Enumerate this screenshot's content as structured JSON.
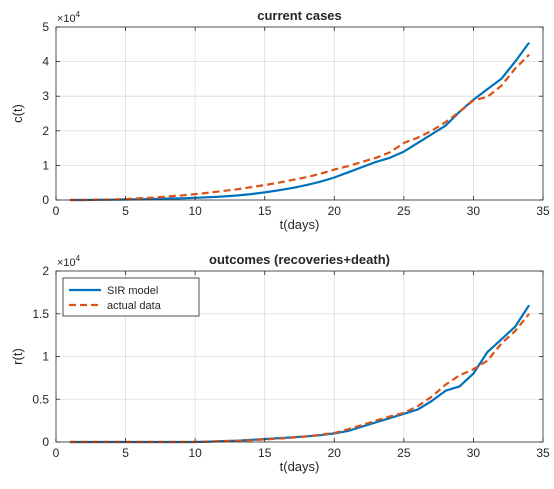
{
  "chart_data": [
    {
      "type": "line",
      "title": "current cases",
      "xlabel": "t(days)",
      "ylabel": "c(t)",
      "xlim": [
        0,
        35
      ],
      "ylim": [
        0,
        50000
      ],
      "xticks": [
        0,
        5,
        10,
        15,
        20,
        25,
        30,
        35
      ],
      "yticks": [
        0,
        10000,
        20000,
        30000,
        40000,
        50000
      ],
      "ytick_labels": [
        "0",
        "1",
        "2",
        "3",
        "4",
        "5"
      ],
      "y_multiplier": {
        "base": "×10",
        "exponent": "4"
      },
      "grid": true,
      "legend": null,
      "series": [
        {
          "color": "#0072BD",
          "style": "solid",
          "x": [
            1,
            2,
            3,
            4,
            5,
            6,
            7,
            8,
            9,
            10,
            11,
            12,
            13,
            14,
            15,
            16,
            17,
            18,
            19,
            20,
            21,
            22,
            23,
            24,
            25,
            26,
            27,
            28,
            29,
            30,
            31,
            32,
            33,
            34
          ],
          "y": [
            0,
            0,
            50,
            100,
            150,
            200,
            300,
            400,
            500,
            650,
            800,
            1000,
            1300,
            1700,
            2200,
            2800,
            3500,
            4300,
            5300,
            6500,
            8000,
            9500,
            11000,
            12200,
            14000,
            16500,
            19000,
            21500,
            25500,
            29000,
            32000,
            35000,
            40000,
            45500
          ]
        },
        {
          "color": "#D95319",
          "style": "dashed",
          "x": [
            1,
            2,
            3,
            4,
            5,
            6,
            7,
            8,
            9,
            10,
            11,
            12,
            13,
            14,
            15,
            16,
            17,
            18,
            19,
            20,
            21,
            22,
            23,
            24,
            25,
            26,
            27,
            28,
            29,
            30,
            31,
            32,
            33,
            34
          ],
          "y": [
            0,
            0,
            50,
            150,
            250,
            500,
            700,
            1000,
            1300,
            1700,
            2100,
            2600,
            3100,
            3700,
            4300,
            5000,
            5800,
            6600,
            7600,
            8800,
            9800,
            11000,
            12200,
            13800,
            16500,
            18000,
            20000,
            22500,
            25500,
            28800,
            29800,
            33000,
            38000,
            42000
          ]
        }
      ]
    },
    {
      "type": "line",
      "title": "outcomes (recoveries+death)",
      "xlabel": "t(days)",
      "ylabel": "r(t)",
      "xlim": [
        0,
        35
      ],
      "ylim": [
        0,
        20000
      ],
      "xticks": [
        0,
        5,
        10,
        15,
        20,
        25,
        30,
        35
      ],
      "yticks": [
        0,
        5000,
        10000,
        15000,
        20000
      ],
      "ytick_labels": [
        "0",
        "0.5",
        "1",
        "1.5",
        "2"
      ],
      "y_multiplier": {
        "base": "×10",
        "exponent": "4"
      },
      "grid": true,
      "legend": "top-left",
      "series": [
        {
          "name": "SIR model",
          "color": "#0072BD",
          "style": "solid",
          "x": [
            1,
            2,
            3,
            4,
            5,
            6,
            7,
            8,
            9,
            10,
            11,
            12,
            13,
            14,
            15,
            16,
            17,
            18,
            19,
            20,
            21,
            22,
            23,
            24,
            25,
            26,
            27,
            28,
            29,
            30,
            31,
            32,
            33,
            34
          ],
          "y": [
            0,
            0,
            0,
            0,
            0,
            0,
            0,
            0,
            0,
            0,
            50,
            100,
            150,
            250,
            350,
            450,
            550,
            650,
            800,
            1000,
            1300,
            1800,
            2300,
            2800,
            3300,
            3800,
            4800,
            6000,
            6500,
            8000,
            10500,
            12000,
            13500,
            16000
          ]
        },
        {
          "name": "actual data",
          "color": "#D95319",
          "style": "dashed",
          "x": [
            1,
            2,
            3,
            4,
            5,
            6,
            7,
            8,
            9,
            10,
            11,
            12,
            13,
            14,
            15,
            16,
            17,
            18,
            19,
            20,
            21,
            22,
            23,
            24,
            25,
            26,
            27,
            28,
            29,
            30,
            31,
            32,
            33,
            34
          ],
          "y": [
            0,
            0,
            0,
            0,
            0,
            0,
            0,
            0,
            0,
            0,
            50,
            100,
            150,
            200,
            300,
            400,
            500,
            650,
            850,
            1050,
            1500,
            2000,
            2500,
            3000,
            3400,
            4200,
            5300,
            6700,
            7800,
            8500,
            9500,
            11500,
            13000,
            15000
          ]
        }
      ]
    }
  ]
}
